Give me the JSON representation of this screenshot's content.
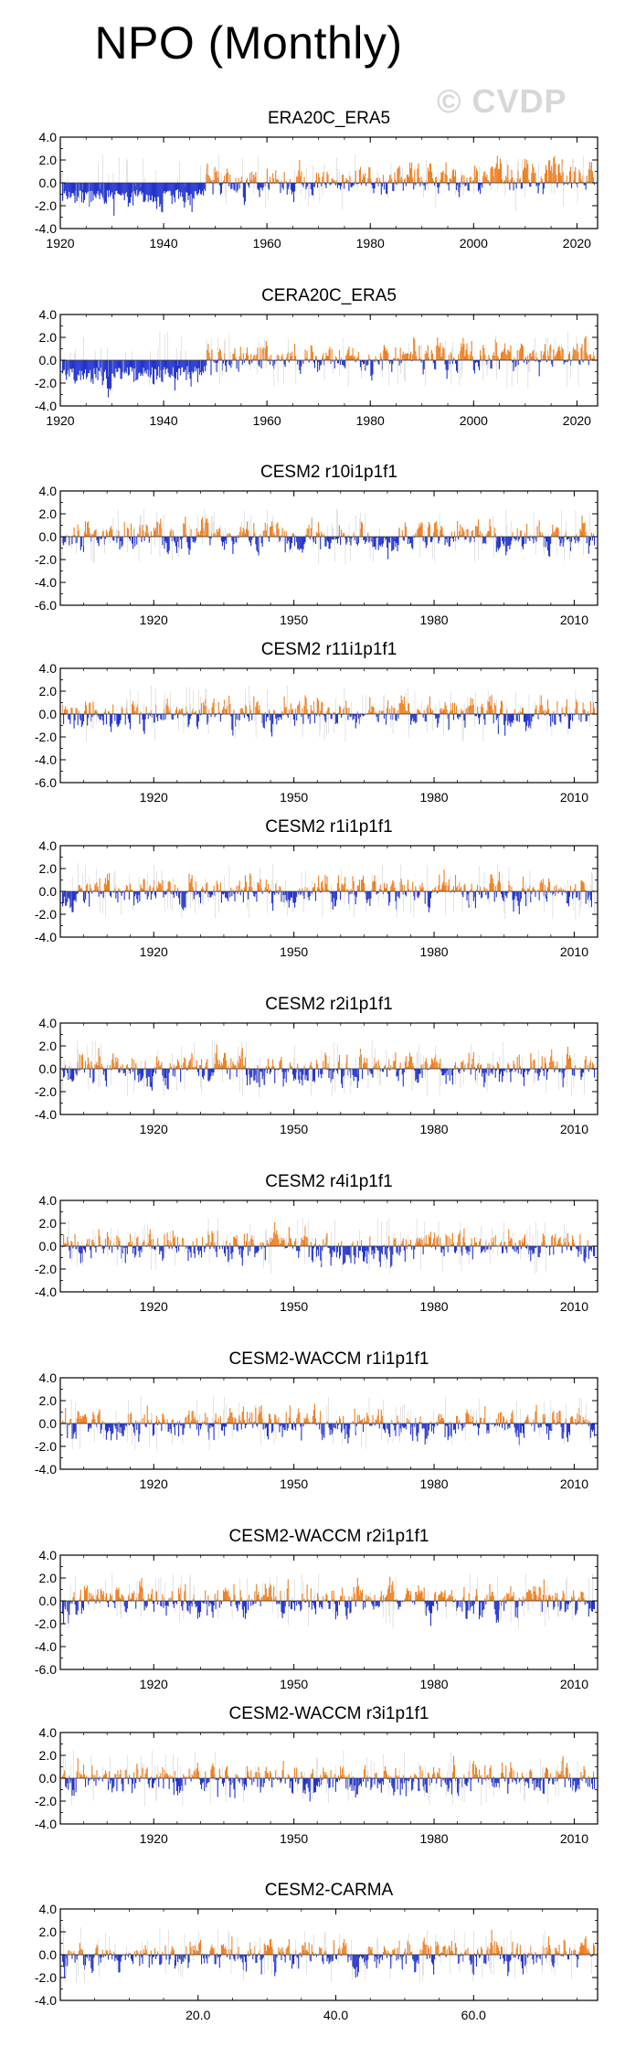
{
  "page": {
    "title": "NPO (Monthly)",
    "watermark": "© CVDP",
    "colors": {
      "positive": "#f07f1f",
      "negative": "#2233cc",
      "trace": "#c8c8c8",
      "axis": "#000000"
    }
  },
  "chart_data": [
    {
      "type": "bar",
      "title": "ERA20C_ERA5",
      "series_seed": 11,
      "negative_bias": 0.7,
      "trend": 1.0,
      "x_range": [
        1920,
        2024
      ],
      "ylim": [
        -4.0,
        4.0
      ],
      "yticks": [
        "4.0",
        "2.0",
        "0.0",
        "-2.0",
        "-4.0"
      ],
      "xticks": [
        {
          "v": 1920,
          "label": "1920"
        },
        {
          "v": 1940,
          "label": "1940"
        },
        {
          "v": 1960,
          "label": "1960"
        },
        {
          "v": 1980,
          "label": "1980"
        },
        {
          "v": 2000,
          "label": "2000"
        },
        {
          "v": 2020,
          "label": "2020"
        }
      ]
    },
    {
      "type": "bar",
      "title": "CERA20C_ERA5",
      "series_seed": 23,
      "negative_bias": 0.7,
      "trend": 1.0,
      "x_range": [
        1920,
        2024
      ],
      "ylim": [
        -4.0,
        4.0
      ],
      "yticks": [
        "4.0",
        "2.0",
        "0.0",
        "-2.0",
        "-4.0"
      ],
      "xticks": [
        {
          "v": 1920,
          "label": "1920"
        },
        {
          "v": 1940,
          "label": "1940"
        },
        {
          "v": 1960,
          "label": "1960"
        },
        {
          "v": 1980,
          "label": "1980"
        },
        {
          "v": 2000,
          "label": "2000"
        },
        {
          "v": 2020,
          "label": "2020"
        }
      ]
    },
    {
      "type": "bar",
      "title": "CESM2 r10i1p1f1",
      "series_seed": 37,
      "negative_bias": 0,
      "trend": 0,
      "x_range": [
        1900,
        2015
      ],
      "ylim": [
        -6.0,
        4.0
      ],
      "yticks": [
        "4.0",
        "2.0",
        "0.0",
        "-2.0",
        "-4.0",
        "-6.0"
      ],
      "xticks": [
        {
          "v": 1920,
          "label": "1920"
        },
        {
          "v": 1950,
          "label": "1950"
        },
        {
          "v": 1980,
          "label": "1980"
        },
        {
          "v": 2010,
          "label": "2010"
        }
      ]
    },
    {
      "type": "bar",
      "title": "CESM2 r11i1p1f1",
      "series_seed": 41,
      "negative_bias": 0,
      "trend": 0,
      "x_range": [
        1900,
        2015
      ],
      "ylim": [
        -6.0,
        4.0
      ],
      "yticks": [
        "4.0",
        "2.0",
        "0.0",
        "-2.0",
        "-4.0",
        "-6.0"
      ],
      "xticks": [
        {
          "v": 1920,
          "label": "1920"
        },
        {
          "v": 1950,
          "label": "1950"
        },
        {
          "v": 1980,
          "label": "1980"
        },
        {
          "v": 2010,
          "label": "2010"
        }
      ]
    },
    {
      "type": "bar",
      "title": "CESM2 r1i1p1f1",
      "series_seed": 53,
      "negative_bias": 0,
      "trend": 0,
      "x_range": [
        1900,
        2015
      ],
      "ylim": [
        -4.0,
        4.0
      ],
      "yticks": [
        "4.0",
        "2.0",
        "0.0",
        "-2.0",
        "-4.0"
      ],
      "xticks": [
        {
          "v": 1920,
          "label": "1920"
        },
        {
          "v": 1950,
          "label": "1950"
        },
        {
          "v": 1980,
          "label": "1980"
        },
        {
          "v": 2010,
          "label": "2010"
        }
      ]
    },
    {
      "type": "bar",
      "title": "CESM2 r2i1p1f1",
      "series_seed": 67,
      "negative_bias": 0,
      "trend": 0,
      "x_range": [
        1900,
        2015
      ],
      "ylim": [
        -4.0,
        4.0
      ],
      "yticks": [
        "4.0",
        "2.0",
        "0.0",
        "-2.0",
        "-4.0"
      ],
      "xticks": [
        {
          "v": 1920,
          "label": "1920"
        },
        {
          "v": 1950,
          "label": "1950"
        },
        {
          "v": 1980,
          "label": "1980"
        },
        {
          "v": 2010,
          "label": "2010"
        }
      ]
    },
    {
      "type": "bar",
      "title": "CESM2 r4i1p1f1",
      "series_seed": 71,
      "negative_bias": 0,
      "trend": 0,
      "x_range": [
        1900,
        2015
      ],
      "ylim": [
        -4.0,
        4.0
      ],
      "yticks": [
        "4.0",
        "2.0",
        "0.0",
        "-2.0",
        "-4.0"
      ],
      "xticks": [
        {
          "v": 1920,
          "label": "1920"
        },
        {
          "v": 1950,
          "label": "1950"
        },
        {
          "v": 1980,
          "label": "1980"
        },
        {
          "v": 2010,
          "label": "2010"
        }
      ]
    },
    {
      "type": "bar",
      "title": "CESM2-WACCM r1i1p1f1",
      "series_seed": 83,
      "negative_bias": 0,
      "trend": 0,
      "x_range": [
        1900,
        2015
      ],
      "ylim": [
        -4.0,
        4.0
      ],
      "yticks": [
        "4.0",
        "2.0",
        "0.0",
        "-2.0",
        "-4.0"
      ],
      "xticks": [
        {
          "v": 1920,
          "label": "1920"
        },
        {
          "v": 1950,
          "label": "1950"
        },
        {
          "v": 1980,
          "label": "1980"
        },
        {
          "v": 2010,
          "label": "2010"
        }
      ]
    },
    {
      "type": "bar",
      "title": "CESM2-WACCM r2i1p1f1",
      "series_seed": 97,
      "negative_bias": 0,
      "trend": 0,
      "x_range": [
        1900,
        2015
      ],
      "ylim": [
        -6.0,
        4.0
      ],
      "yticks": [
        "4.0",
        "2.0",
        "0.0",
        "-2.0",
        "-4.0",
        "-6.0"
      ],
      "xticks": [
        {
          "v": 1920,
          "label": "1920"
        },
        {
          "v": 1950,
          "label": "1950"
        },
        {
          "v": 1980,
          "label": "1980"
        },
        {
          "v": 2010,
          "label": "2010"
        }
      ]
    },
    {
      "type": "bar",
      "title": "CESM2-WACCM r3i1p1f1",
      "series_seed": 101,
      "negative_bias": 0,
      "trend": 0,
      "x_range": [
        1900,
        2015
      ],
      "ylim": [
        -4.0,
        4.0
      ],
      "yticks": [
        "4.0",
        "2.0",
        "0.0",
        "-2.0",
        "-4.0"
      ],
      "xticks": [
        {
          "v": 1920,
          "label": "1920"
        },
        {
          "v": 1950,
          "label": "1950"
        },
        {
          "v": 1980,
          "label": "1980"
        },
        {
          "v": 2010,
          "label": "2010"
        }
      ]
    },
    {
      "type": "bar",
      "title": "CESM2-CARMA",
      "series_seed": 113,
      "negative_bias": 0,
      "trend": 0,
      "x_range": [
        0,
        78
      ],
      "ylim": [
        -4.0,
        4.0
      ],
      "yticks": [
        "4.0",
        "2.0",
        "0.0",
        "-2.0",
        "-4.0"
      ],
      "xticks": [
        {
          "v": 20,
          "label": "20.0"
        },
        {
          "v": 40,
          "label": "40.0"
        },
        {
          "v": 60,
          "label": "60.0"
        }
      ]
    }
  ]
}
